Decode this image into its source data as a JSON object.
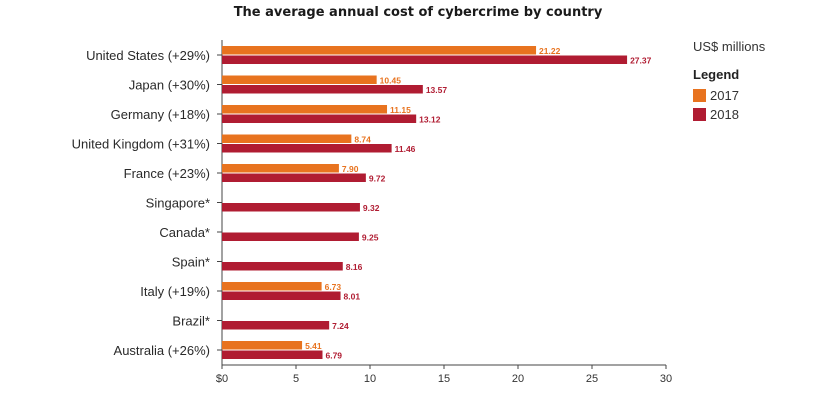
{
  "chart_data": {
    "type": "bar",
    "orientation": "horizontal",
    "title": "The average annual cost of cybercrime by country",
    "units_label": "US$ millions",
    "legend_title": "Legend",
    "categories": [
      "United States (+29%)",
      "Japan (+30%)",
      "Germany (+18%)",
      "United Kingdom (+31%)",
      "France (+23%)",
      "Singapore*",
      "Canada*",
      "Spain*",
      "Italy (+19%)",
      "Brazil*",
      "Australia (+26%)"
    ],
    "series": [
      {
        "name": "2017",
        "color": "#e8731f",
        "values": [
          21.22,
          10.45,
          11.15,
          8.74,
          7.9,
          null,
          null,
          null,
          6.73,
          null,
          5.41
        ],
        "labels": [
          "21.22",
          "10.45",
          "11.15",
          "8.74",
          "7.90",
          null,
          null,
          null,
          "6.73",
          null,
          "5.41"
        ]
      },
      {
        "name": "2018",
        "color": "#b01c32",
        "values": [
          27.37,
          13.57,
          13.12,
          11.46,
          9.72,
          9.32,
          9.25,
          8.16,
          8.01,
          7.24,
          6.79
        ],
        "labels": [
          "27.37",
          "13.57",
          "13.12",
          "11.46",
          "9.72",
          "9.32",
          "9.25",
          "8.16",
          "8.01",
          "7.24",
          "6.79"
        ]
      }
    ],
    "xlim": [
      0,
      30
    ],
    "xticks": [
      0,
      5,
      10,
      15,
      20,
      25,
      30
    ],
    "xtick_labels": [
      "$0",
      "5",
      "10",
      "15",
      "20",
      "25",
      "30"
    ],
    "grid": false,
    "legend_position": "right"
  }
}
